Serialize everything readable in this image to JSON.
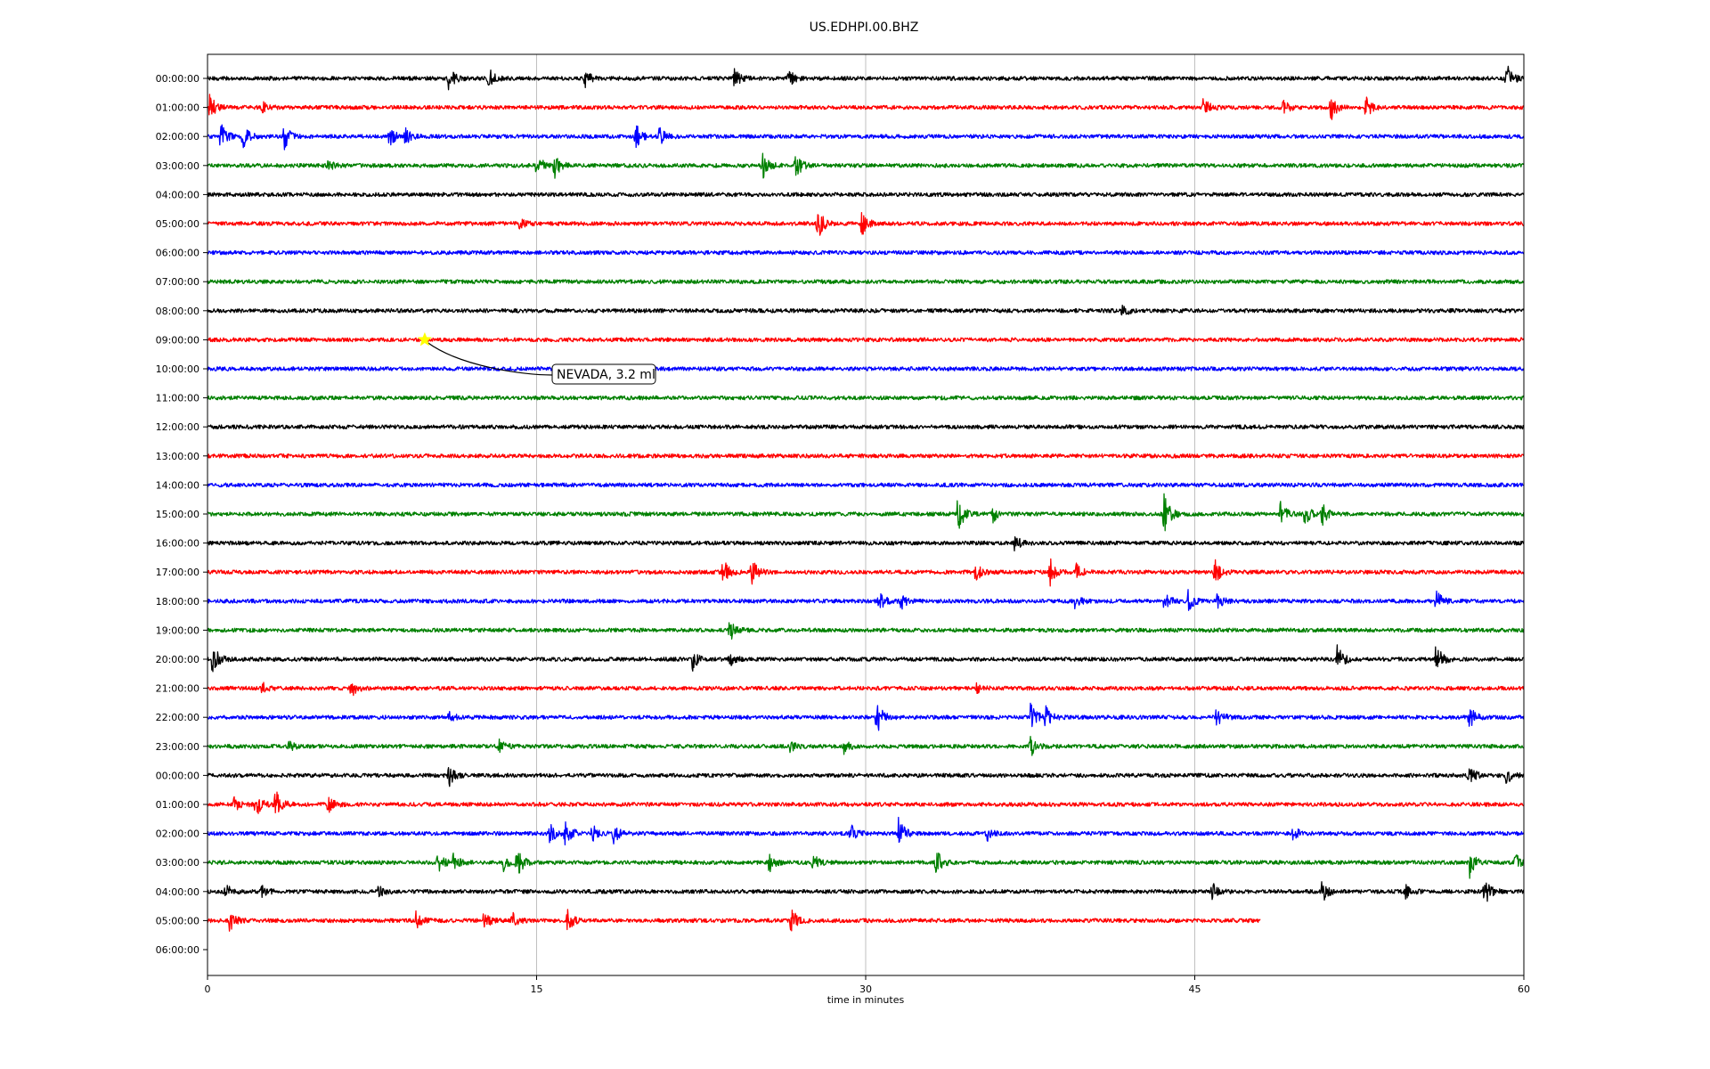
{
  "chart_data": {
    "type": "line",
    "title": "US.EDHPI.00.BHZ",
    "xlabel": "time in minutes",
    "ylabel": "",
    "xlim": [
      0,
      60
    ],
    "x_ticks": [
      "0",
      "15",
      "30",
      "45",
      "60"
    ],
    "x_tick_values": [
      0,
      15,
      30,
      45,
      60
    ],
    "grid": "vertical-at-major-ticks",
    "row_colors": [
      "#000000",
      "#ff0000",
      "#0000ff",
      "#008000"
    ],
    "row_labels": [
      "00:00:00",
      "01:00:00",
      "02:00:00",
      "03:00:00",
      "04:00:00",
      "05:00:00",
      "06:00:00",
      "07:00:00",
      "08:00:00",
      "09:00:00",
      "10:00:00",
      "11:00:00",
      "12:00:00",
      "13:00:00",
      "14:00:00",
      "15:00:00",
      "16:00:00",
      "17:00:00",
      "18:00:00",
      "19:00:00",
      "20:00:00",
      "21:00:00",
      "22:00:00",
      "23:00:00",
      "00:00:00",
      "01:00:00",
      "02:00:00",
      "03:00:00",
      "04:00:00",
      "05:00:00",
      "06:00:00"
    ],
    "last_trace_end_minute": 48,
    "event_marker": {
      "row_index": 9,
      "minute": 9.9,
      "color": "#ffff00",
      "label": "NEVADA, 3.2 ml"
    },
    "bursts": [
      {
        "row": 0,
        "events": [
          [
            11,
            2.2
          ],
          [
            12.8,
            2
          ],
          [
            17.2,
            1.5
          ],
          [
            24,
            2
          ],
          [
            26.5,
            1.5
          ],
          [
            59.2,
            3.5
          ]
        ]
      },
      {
        "row": 1,
        "events": [
          [
            0.1,
            2.5
          ],
          [
            2.5,
            1
          ],
          [
            45.4,
            2.5
          ],
          [
            49,
            1.5
          ],
          [
            51.2,
            2.5
          ],
          [
            52.8,
            2
          ]
        ]
      },
      {
        "row": 2,
        "events": [
          [
            0.6,
            2.5
          ],
          [
            1.6,
            3
          ],
          [
            3.5,
            2.5
          ],
          [
            8.3,
            2
          ],
          [
            9,
            1.5
          ],
          [
            19.5,
            2.5
          ],
          [
            20.6,
            2
          ]
        ]
      },
      {
        "row": 3,
        "events": [
          [
            5.5,
            1.2
          ],
          [
            15,
            2.5
          ],
          [
            15.8,
            2.5
          ],
          [
            25.3,
            2.5
          ],
          [
            26.8,
            2.5
          ]
        ]
      },
      {
        "row": 5,
        "events": [
          [
            14.2,
            1.2
          ],
          [
            27.8,
            3.5
          ],
          [
            29.8,
            2.5
          ]
        ]
      },
      {
        "row": 8,
        "events": [
          [
            41.7,
            1.2
          ]
        ]
      },
      {
        "row": 15,
        "events": [
          [
            34.2,
            3.5
          ],
          [
            35.8,
            1.5
          ],
          [
            43.6,
            4
          ],
          [
            48.9,
            2.5
          ],
          [
            50,
            2.5
          ],
          [
            50.8,
            2
          ]
        ]
      },
      {
        "row": 16,
        "events": [
          [
            36.8,
            1.5
          ]
        ]
      },
      {
        "row": 17,
        "events": [
          [
            23.5,
            2.5
          ],
          [
            24.8,
            2.5
          ],
          [
            35,
            1.8
          ],
          [
            38.4,
            2.5
          ],
          [
            39.6,
            1.5
          ],
          [
            45.9,
            2.5
          ]
        ]
      },
      {
        "row": 18,
        "events": [
          [
            30.6,
            2
          ],
          [
            31.6,
            1.5
          ],
          [
            39.5,
            1.5
          ],
          [
            43.6,
            2
          ],
          [
            44.7,
            2
          ],
          [
            46,
            1.5
          ],
          [
            56,
            2
          ]
        ]
      },
      {
        "row": 19,
        "events": [
          [
            23.8,
            2
          ]
        ]
      },
      {
        "row": 20,
        "events": [
          [
            0.2,
            3.5
          ],
          [
            22.1,
            2
          ],
          [
            23.8,
            1.2
          ],
          [
            51.5,
            3
          ],
          [
            56,
            3
          ]
        ]
      },
      {
        "row": 21,
        "events": [
          [
            2.5,
            1
          ],
          [
            6.5,
            2
          ],
          [
            35,
            1
          ]
        ]
      },
      {
        "row": 22,
        "events": [
          [
            11,
            1
          ],
          [
            30.5,
            3.2
          ],
          [
            37.5,
            3
          ],
          [
            38.2,
            2
          ],
          [
            46,
            2
          ],
          [
            57.5,
            2.5
          ]
        ]
      },
      {
        "row": 23,
        "events": [
          [
            3.7,
            1
          ],
          [
            13.3,
            1.2
          ],
          [
            26.5,
            1.2
          ],
          [
            29,
            1.2
          ],
          [
            37.5,
            2
          ]
        ]
      },
      {
        "row": 24,
        "events": [
          [
            11,
            2
          ],
          [
            57.5,
            2
          ],
          [
            59.2,
            2
          ]
        ]
      },
      {
        "row": 25,
        "events": [
          [
            1.2,
            1.8
          ],
          [
            2.2,
            2.5
          ],
          [
            3.1,
            3
          ],
          [
            5.5,
            1.5
          ]
        ]
      },
      {
        "row": 26,
        "events": [
          [
            15.6,
            2
          ],
          [
            16.3,
            3
          ],
          [
            17.5,
            2
          ],
          [
            18.5,
            2
          ],
          [
            29.3,
            2
          ],
          [
            31.5,
            3
          ],
          [
            35.5,
            1.5
          ],
          [
            49.5,
            1.5
          ]
        ]
      },
      {
        "row": 27,
        "events": [
          [
            10.5,
            2
          ],
          [
            11.2,
            1.5
          ],
          [
            13.5,
            1.5
          ],
          [
            14.1,
            3
          ],
          [
            25.6,
            1.8
          ],
          [
            27.6,
            1.5
          ],
          [
            33.2,
            3
          ],
          [
            57.5,
            3
          ],
          [
            59.6,
            1.8
          ]
        ]
      },
      {
        "row": 28,
        "events": [
          [
            0.8,
            1.5
          ],
          [
            2.5,
            1.5
          ],
          [
            7.8,
            1.2
          ],
          [
            45.8,
            1.5
          ],
          [
            50.8,
            2
          ],
          [
            54.6,
            1.5
          ],
          [
            58.2,
            3
          ]
        ]
      },
      {
        "row": 29,
        "events": [
          [
            1,
            2
          ],
          [
            9.5,
            1.5
          ],
          [
            12.6,
            1.8
          ],
          [
            13.9,
            1.5
          ],
          [
            16.4,
            2
          ],
          [
            26.6,
            3
          ]
        ]
      }
    ]
  }
}
